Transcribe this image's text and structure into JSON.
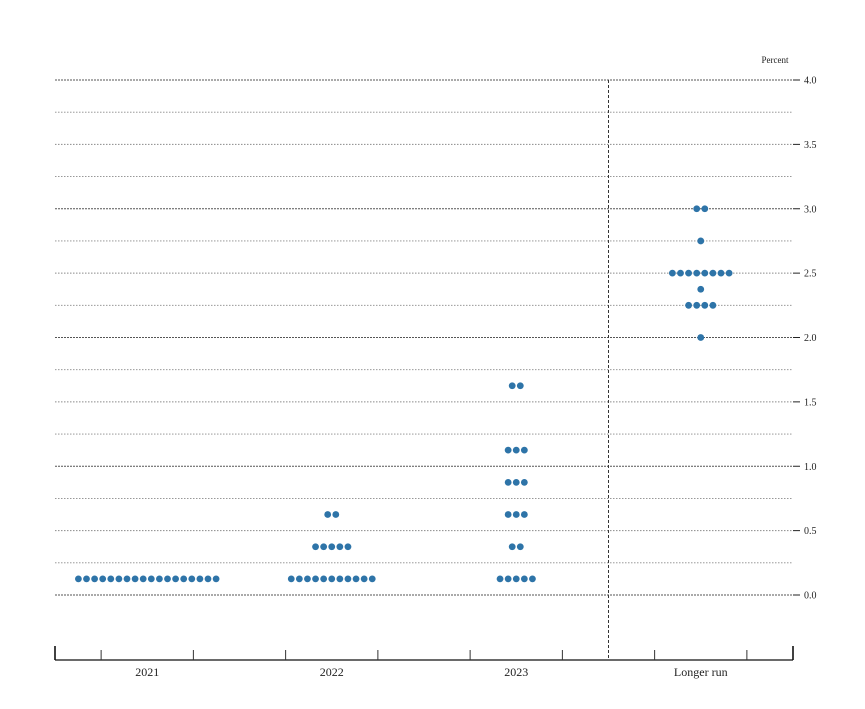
{
  "chart_data": {
    "type": "scatter",
    "title": "",
    "xlabel": "",
    "ylabel": "Percent",
    "ylim": [
      -0.5,
      4.0
    ],
    "yticks": [
      "0.0",
      "0.5",
      "1.0",
      "1.5",
      "2.0",
      "2.5",
      "3.0",
      "3.5",
      "4.0"
    ],
    "grid": true,
    "categories": [
      "2021",
      "2022",
      "2023",
      "Longer run"
    ],
    "dot_color": "#2e74a8",
    "series": [
      {
        "values": [
          {
            "x": "2021",
            "y": 0.125,
            "count": 18
          }
        ]
      },
      {
        "values": [
          {
            "x": "2022",
            "y": 0.125,
            "count": 11
          },
          {
            "x": "2022",
            "y": 0.375,
            "count": 5
          },
          {
            "x": "2022",
            "y": 0.625,
            "count": 2
          }
        ]
      },
      {
        "values": [
          {
            "x": "2023",
            "y": 0.125,
            "count": 5
          },
          {
            "x": "2023",
            "y": 0.375,
            "count": 2
          },
          {
            "x": "2023",
            "y": 0.625,
            "count": 3
          },
          {
            "x": "2023",
            "y": 0.875,
            "count": 3
          },
          {
            "x": "2023",
            "y": 1.125,
            "count": 3
          },
          {
            "x": "2023",
            "y": 1.625,
            "count": 2
          }
        ]
      },
      {
        "values": [
          {
            "x": "Longer run",
            "y": 2.0,
            "count": 1
          },
          {
            "x": "Longer run",
            "y": 2.25,
            "count": 4
          },
          {
            "x": "Longer run",
            "y": 2.375,
            "count": 1
          },
          {
            "x": "Longer run",
            "y": 2.5,
            "count": 8
          },
          {
            "x": "Longer run",
            "y": 2.75,
            "count": 1
          },
          {
            "x": "Longer run",
            "y": 3.0,
            "count": 2
          }
        ]
      }
    ]
  }
}
